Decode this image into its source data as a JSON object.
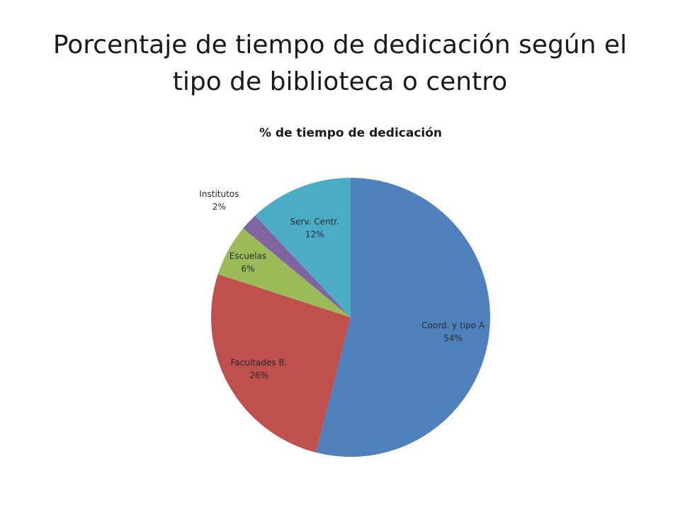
{
  "slide": {
    "title": "Porcentaje de tiempo de dedicación según el tipo de biblioteca o centro"
  },
  "chart_data": {
    "type": "pie",
    "title": "% de tiempo de dedicación",
    "categories": [
      "Coord. y tipo A",
      "Facultades B.",
      "Escuelas",
      "Institutos",
      "Serv. Centr."
    ],
    "values": [
      54,
      26,
      6,
      2,
      12
    ],
    "value_labels": [
      "54%",
      "26%",
      "6%",
      "2%",
      "12%"
    ],
    "colors": [
      "#4F81BD",
      "#C0504D",
      "#9BBB59",
      "#8064A2",
      "#4BACC6"
    ],
    "start_angle": "12 o'clock",
    "direction": "clockwise",
    "legend": "none"
  }
}
